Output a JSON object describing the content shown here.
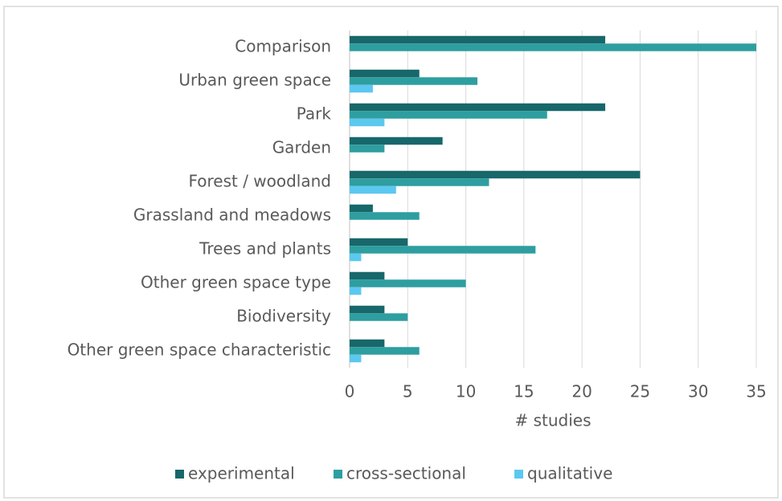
{
  "chart_data": {
    "type": "bar",
    "orientation": "horizontal",
    "categories": [
      "Comparison",
      "Urban green space",
      "Park",
      "Garden",
      "Forest / woodland",
      "Grassland and meadows",
      "Trees and plants",
      "Other green space type",
      "Biodiversity",
      "Other green space characteristic"
    ],
    "series": [
      {
        "name": "experimental",
        "color": "#17676b",
        "values": [
          22,
          6,
          22,
          8,
          25,
          2,
          5,
          3,
          3,
          3
        ]
      },
      {
        "name": "cross-sectional",
        "color": "#2e9ea0",
        "values": [
          35,
          11,
          17,
          3,
          12,
          6,
          16,
          10,
          5,
          6
        ]
      },
      {
        "name": "qualitative",
        "color": "#5bc8f0",
        "values": [
          0,
          2,
          3,
          0,
          4,
          0,
          1,
          1,
          0,
          1
        ]
      }
    ],
    "xlabel": "# studies",
    "xlim": [
      0,
      35
    ],
    "xticks": [
      0,
      5,
      10,
      15,
      20,
      25,
      30,
      35
    ],
    "grid": true,
    "legend": "bottom"
  }
}
